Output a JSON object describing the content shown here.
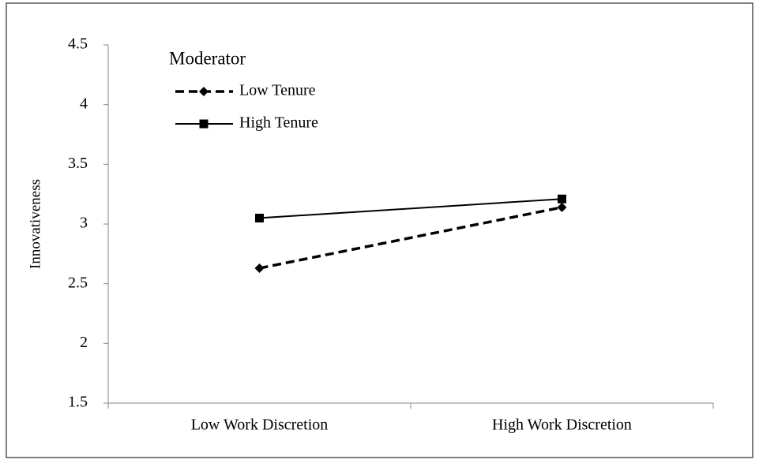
{
  "chart_data": {
    "type": "line",
    "y_label": "Innovativeness",
    "legend_title": "Moderator",
    "categories": [
      "Low Work Discretion",
      "High Work Discretion"
    ],
    "series": [
      {
        "name": "Low Tenure",
        "color": "#000000",
        "dashed": true,
        "marker": "diamond",
        "values": [
          2.63,
          3.14
        ]
      },
      {
        "name": "High Tenure",
        "color": "#000000",
        "dashed": false,
        "marker": "square",
        "values": [
          3.05,
          3.21
        ]
      }
    ],
    "ylim": [
      1.5,
      4.5
    ],
    "yticks": [
      1.5,
      2,
      2.5,
      3,
      3.5,
      4,
      4.5
    ],
    "grid": false,
    "legend": "upper left"
  }
}
